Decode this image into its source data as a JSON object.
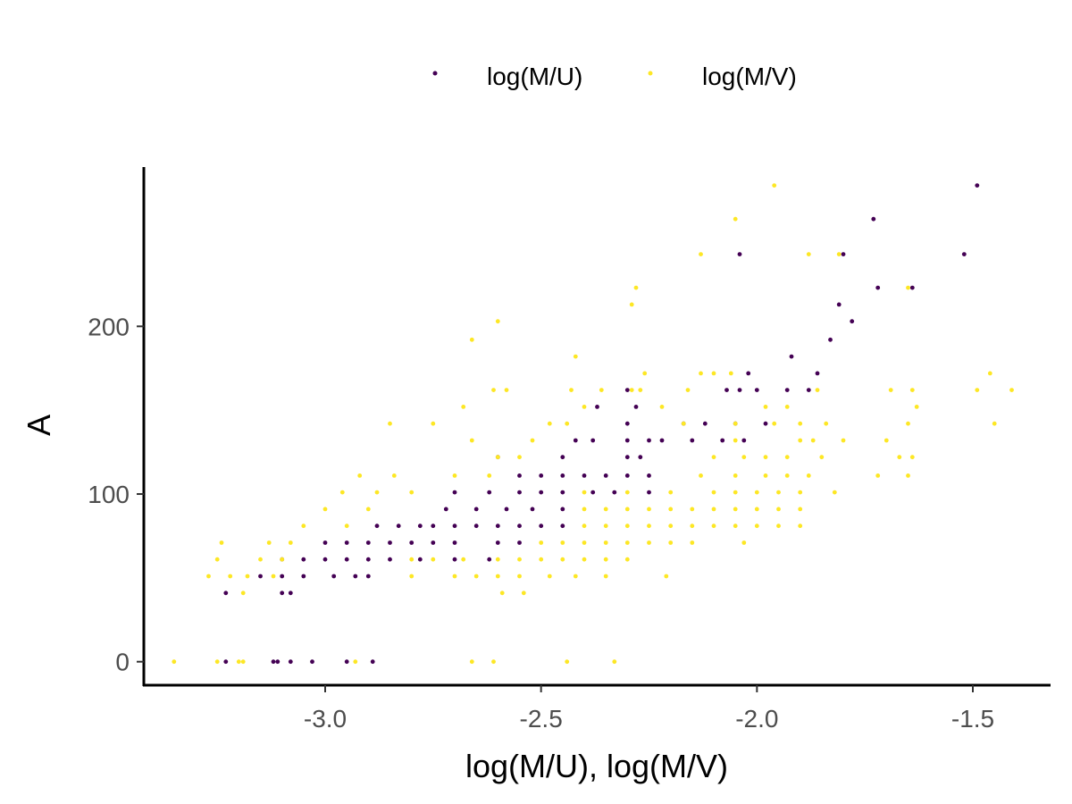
{
  "chart_data": {
    "type": "scatter",
    "xlabel": "log(M/U), log(M/V)",
    "ylabel": "A",
    "xlim": [
      -3.42,
      -1.32
    ],
    "ylim": [
      -14,
      295
    ],
    "x_ticks": [
      -3.0,
      -2.5,
      -2.0,
      -1.5
    ],
    "x_tick_labels": [
      "-3.0",
      "-2.5",
      "-2.0",
      "-1.5"
    ],
    "y_ticks": [
      0,
      100,
      200
    ],
    "y_tick_labels": [
      "0",
      "100",
      "200"
    ],
    "legend_position": "top",
    "grid": false,
    "series": [
      {
        "name": "log(M/U)",
        "color": "#440154",
        "points": [
          [
            -3.23,
            0
          ],
          [
            -3.12,
            0
          ],
          [
            -3.11,
            0
          ],
          [
            -3.08,
            0
          ],
          [
            -3.03,
            0
          ],
          [
            -2.95,
            0
          ],
          [
            -2.89,
            0
          ],
          [
            -3.23,
            41
          ],
          [
            -3.1,
            41
          ],
          [
            -3.08,
            41
          ],
          [
            -3.15,
            51
          ],
          [
            -3.1,
            51
          ],
          [
            -3.05,
            51
          ],
          [
            -2.98,
            51
          ],
          [
            -2.93,
            51
          ],
          [
            -2.9,
            51
          ],
          [
            -3.1,
            61
          ],
          [
            -3.05,
            61
          ],
          [
            -3.0,
            61
          ],
          [
            -2.95,
            61
          ],
          [
            -2.9,
            61
          ],
          [
            -2.85,
            61
          ],
          [
            -2.78,
            61
          ],
          [
            -2.7,
            61
          ],
          [
            -2.62,
            61
          ],
          [
            -3.0,
            71
          ],
          [
            -2.95,
            71
          ],
          [
            -2.9,
            71
          ],
          [
            -2.85,
            71
          ],
          [
            -2.8,
            71
          ],
          [
            -2.75,
            71
          ],
          [
            -2.7,
            71
          ],
          [
            -2.6,
            71
          ],
          [
            -2.55,
            71
          ],
          [
            -2.88,
            81
          ],
          [
            -2.83,
            81
          ],
          [
            -2.78,
            81
          ],
          [
            -2.75,
            81
          ],
          [
            -2.7,
            81
          ],
          [
            -2.65,
            81
          ],
          [
            -2.6,
            81
          ],
          [
            -2.55,
            81
          ],
          [
            -2.5,
            81
          ],
          [
            -2.45,
            81
          ],
          [
            -2.72,
            91
          ],
          [
            -2.65,
            91
          ],
          [
            -2.58,
            91
          ],
          [
            -2.52,
            91
          ],
          [
            -2.45,
            91
          ],
          [
            -2.7,
            101
          ],
          [
            -2.62,
            101
          ],
          [
            -2.55,
            101
          ],
          [
            -2.5,
            101
          ],
          [
            -2.45,
            101
          ],
          [
            -2.38,
            101
          ],
          [
            -2.33,
            101
          ],
          [
            -2.25,
            101
          ],
          [
            -2.55,
            111
          ],
          [
            -2.5,
            111
          ],
          [
            -2.45,
            111
          ],
          [
            -2.4,
            111
          ],
          [
            -2.35,
            111
          ],
          [
            -2.3,
            111
          ],
          [
            -2.25,
            111
          ],
          [
            -2.6,
            122
          ],
          [
            -2.45,
            122
          ],
          [
            -2.3,
            122
          ],
          [
            -2.27,
            122
          ],
          [
            -2.42,
            132
          ],
          [
            -2.38,
            132
          ],
          [
            -2.3,
            132
          ],
          [
            -2.25,
            132
          ],
          [
            -2.22,
            132
          ],
          [
            -2.15,
            132
          ],
          [
            -2.08,
            132
          ],
          [
            -2.03,
            132
          ],
          [
            -2.3,
            142
          ],
          [
            -2.17,
            142
          ],
          [
            -2.12,
            142
          ],
          [
            -2.05,
            142
          ],
          [
            -1.98,
            142
          ],
          [
            -2.37,
            152
          ],
          [
            -2.28,
            152
          ],
          [
            -2.3,
            162
          ],
          [
            -2.07,
            162
          ],
          [
            -2.04,
            162
          ],
          [
            -2.0,
            162
          ],
          [
            -1.93,
            162
          ],
          [
            -1.88,
            162
          ],
          [
            -2.02,
            172
          ],
          [
            -1.86,
            172
          ],
          [
            -1.92,
            182
          ],
          [
            -1.83,
            192
          ],
          [
            -1.78,
            203
          ],
          [
            -1.81,
            213
          ],
          [
            -1.72,
            223
          ],
          [
            -1.64,
            223
          ],
          [
            -2.04,
            243
          ],
          [
            -1.8,
            243
          ],
          [
            -1.52,
            243
          ],
          [
            -1.73,
            264
          ],
          [
            -1.49,
            284
          ]
        ]
      },
      {
        "name": "log(M/V)",
        "color": "#fde725",
        "points": [
          [
            -3.35,
            0
          ],
          [
            -3.25,
            0
          ],
          [
            -3.2,
            0
          ],
          [
            -3.19,
            0
          ],
          [
            -2.93,
            0
          ],
          [
            -2.66,
            0
          ],
          [
            -2.61,
            0
          ],
          [
            -2.44,
            0
          ],
          [
            -2.33,
            0
          ],
          [
            -3.19,
            41
          ],
          [
            -2.59,
            41
          ],
          [
            -2.54,
            41
          ],
          [
            -3.27,
            51
          ],
          [
            -3.22,
            51
          ],
          [
            -3.18,
            51
          ],
          [
            -3.12,
            51
          ],
          [
            -2.8,
            51
          ],
          [
            -2.7,
            51
          ],
          [
            -2.65,
            51
          ],
          [
            -2.6,
            51
          ],
          [
            -2.55,
            51
          ],
          [
            -2.48,
            51
          ],
          [
            -2.42,
            51
          ],
          [
            -2.35,
            51
          ],
          [
            -2.21,
            51
          ],
          [
            -3.25,
            61
          ],
          [
            -3.15,
            61
          ],
          [
            -3.1,
            61
          ],
          [
            -2.8,
            61
          ],
          [
            -2.75,
            61
          ],
          [
            -2.68,
            61
          ],
          [
            -2.6,
            61
          ],
          [
            -2.55,
            61
          ],
          [
            -2.5,
            61
          ],
          [
            -2.45,
            61
          ],
          [
            -2.4,
            61
          ],
          [
            -2.35,
            61
          ],
          [
            -2.3,
            61
          ],
          [
            -3.24,
            71
          ],
          [
            -3.13,
            71
          ],
          [
            -3.08,
            71
          ],
          [
            -2.5,
            71
          ],
          [
            -2.45,
            71
          ],
          [
            -2.4,
            71
          ],
          [
            -2.35,
            71
          ],
          [
            -2.3,
            71
          ],
          [
            -2.25,
            71
          ],
          [
            -2.2,
            71
          ],
          [
            -2.15,
            71
          ],
          [
            -2.03,
            71
          ],
          [
            -3.05,
            81
          ],
          [
            -2.95,
            81
          ],
          [
            -2.4,
            81
          ],
          [
            -2.35,
            81
          ],
          [
            -2.3,
            81
          ],
          [
            -2.25,
            81
          ],
          [
            -2.2,
            81
          ],
          [
            -2.15,
            81
          ],
          [
            -2.1,
            81
          ],
          [
            -2.05,
            81
          ],
          [
            -2.0,
            81
          ],
          [
            -1.95,
            81
          ],
          [
            -1.9,
            81
          ],
          [
            -3.0,
            91
          ],
          [
            -2.9,
            91
          ],
          [
            -2.4,
            91
          ],
          [
            -2.35,
            91
          ],
          [
            -2.3,
            91
          ],
          [
            -2.25,
            91
          ],
          [
            -2.2,
            91
          ],
          [
            -2.15,
            91
          ],
          [
            -2.1,
            91
          ],
          [
            -2.05,
            91
          ],
          [
            -2.0,
            91
          ],
          [
            -1.95,
            91
          ],
          [
            -1.9,
            91
          ],
          [
            -2.96,
            101
          ],
          [
            -2.88,
            101
          ],
          [
            -2.8,
            101
          ],
          [
            -2.4,
            101
          ],
          [
            -2.3,
            101
          ],
          [
            -2.2,
            101
          ],
          [
            -2.1,
            101
          ],
          [
            -2.05,
            101
          ],
          [
            -2.0,
            101
          ],
          [
            -1.95,
            101
          ],
          [
            -1.9,
            101
          ],
          [
            -1.82,
            101
          ],
          [
            -2.92,
            111
          ],
          [
            -2.84,
            111
          ],
          [
            -2.7,
            111
          ],
          [
            -2.62,
            111
          ],
          [
            -2.13,
            111
          ],
          [
            -2.05,
            111
          ],
          [
            -1.98,
            111
          ],
          [
            -1.93,
            111
          ],
          [
            -1.88,
            111
          ],
          [
            -1.72,
            111
          ],
          [
            -1.65,
            111
          ],
          [
            -2.6,
            122
          ],
          [
            -2.55,
            122
          ],
          [
            -2.1,
            122
          ],
          [
            -2.03,
            122
          ],
          [
            -1.98,
            122
          ],
          [
            -1.93,
            122
          ],
          [
            -1.85,
            122
          ],
          [
            -1.67,
            122
          ],
          [
            -1.64,
            122
          ],
          [
            -2.66,
            132
          ],
          [
            -2.52,
            132
          ],
          [
            -2.05,
            132
          ],
          [
            -1.9,
            132
          ],
          [
            -1.87,
            132
          ],
          [
            -1.8,
            132
          ],
          [
            -1.7,
            132
          ],
          [
            -2.85,
            142
          ],
          [
            -2.75,
            142
          ],
          [
            -2.48,
            142
          ],
          [
            -2.44,
            142
          ],
          [
            -2.17,
            142
          ],
          [
            -2.05,
            142
          ],
          [
            -1.96,
            142
          ],
          [
            -1.9,
            142
          ],
          [
            -1.84,
            142
          ],
          [
            -1.65,
            142
          ],
          [
            -1.45,
            142
          ],
          [
            -2.68,
            152
          ],
          [
            -2.4,
            152
          ],
          [
            -2.22,
            152
          ],
          [
            -1.98,
            152
          ],
          [
            -1.93,
            152
          ],
          [
            -1.63,
            152
          ],
          [
            -2.61,
            162
          ],
          [
            -2.58,
            162
          ],
          [
            -2.43,
            162
          ],
          [
            -2.36,
            162
          ],
          [
            -2.29,
            162
          ],
          [
            -2.27,
            162
          ],
          [
            -2.16,
            162
          ],
          [
            -1.86,
            162
          ],
          [
            -1.69,
            162
          ],
          [
            -1.64,
            162
          ],
          [
            -1.49,
            162
          ],
          [
            -1.41,
            162
          ],
          [
            -2.26,
            172
          ],
          [
            -2.13,
            172
          ],
          [
            -2.1,
            172
          ],
          [
            -2.06,
            172
          ],
          [
            -1.46,
            172
          ],
          [
            -2.42,
            182
          ],
          [
            -2.66,
            192
          ],
          [
            -2.6,
            203
          ],
          [
            -2.29,
            213
          ],
          [
            -2.28,
            223
          ],
          [
            -1.65,
            223
          ],
          [
            -2.13,
            243
          ],
          [
            -1.88,
            243
          ],
          [
            -1.81,
            243
          ],
          [
            -2.05,
            264
          ],
          [
            -1.96,
            284
          ]
        ]
      }
    ]
  }
}
